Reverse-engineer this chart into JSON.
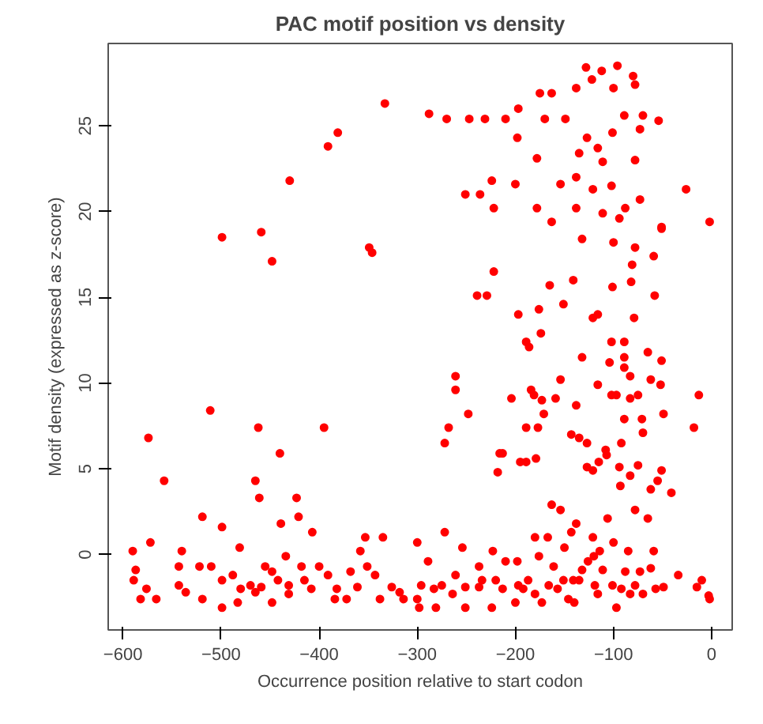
{
  "chart_data": {
    "type": "scatter",
    "title": "PAC motif position vs density",
    "xlabel": "Occurrence position relative to start codon",
    "ylabel": "Motif density (expressed as z-score)",
    "xlim": [
      -615,
      21
    ],
    "ylim": [
      -4.4,
      29.8
    ],
    "xticks": [
      -600,
      -500,
      -400,
      -300,
      -200,
      -100,
      0
    ],
    "yticks": [
      0,
      5,
      10,
      15,
      20,
      25
    ],
    "grid": false,
    "marker": "circle",
    "series": [
      {
        "color": "#ff0000",
        "x": [
          -128,
          -96,
          -112,
          -80,
          -122,
          -175,
          -163,
          -138,
          -100,
          -78,
          -333,
          -288,
          -270,
          -247,
          -231,
          -210,
          -197,
          -170,
          -149,
          -89,
          -70,
          -54,
          -73,
          -101,
          -198,
          -127,
          -116,
          -135,
          -178,
          -111,
          -78,
          -381,
          -391,
          -430,
          -224,
          -200,
          -154,
          -138,
          -121,
          -102,
          -26,
          -251,
          -236,
          -73,
          -222,
          -178,
          -138,
          -111,
          -88,
          -163,
          -2,
          -51,
          -94,
          -499,
          -459,
          -448,
          -349,
          -346,
          -132,
          -100,
          -51,
          -78,
          -59,
          -81,
          -222,
          -165,
          -141,
          -101,
          -82,
          -239,
          -229,
          -58,
          -197,
          -176,
          -151,
          -116,
          -121,
          -79,
          -174,
          -189,
          -186,
          -102,
          -89,
          -132,
          -65,
          -89,
          -51,
          -104,
          -89,
          -261,
          -83,
          -261,
          -154,
          -116,
          -62,
          -52,
          -184,
          -181,
          -204,
          -159,
          -173,
          -102,
          -97,
          -83,
          -75,
          -13,
          -138,
          -171,
          -248,
          -49,
          -511,
          -89,
          -71,
          -574,
          -462,
          -395,
          -268,
          -143,
          -135,
          -127,
          -18,
          -70,
          -272,
          -189,
          -177,
          -179,
          -216,
          -213,
          -218,
          -195,
          -189,
          -108,
          -107,
          -127,
          -121,
          -115,
          -94,
          -93,
          -92,
          -75,
          -83,
          -51,
          -55,
          -62,
          -41,
          -78,
          -65,
          -558,
          -465,
          -461,
          -440,
          -423,
          -421,
          -439,
          -519,
          -499,
          -407,
          -106,
          -163,
          -154,
          -138,
          -143,
          -272,
          -353,
          -335,
          -180,
          -167,
          -121,
          -572,
          -300,
          -100,
          -481,
          -254,
          -150,
          -590,
          -540,
          -358,
          -223,
          -114,
          -85,
          -59,
          -434,
          -176,
          -120,
          -587,
          -589,
          -582,
          -576,
          -566,
          -543,
          -543,
          -536,
          -522,
          -519,
          -510,
          -499,
          -499,
          -488,
          -483,
          -480,
          -470,
          -465,
          -459,
          -455,
          -448,
          -448,
          -442,
          -431,
          -431,
          -418,
          -415,
          -408,
          -400,
          -391,
          -382,
          -384,
          -372,
          -368,
          -361,
          -351,
          -343,
          -338,
          -326,
          -318,
          -314,
          -300,
          -298,
          -296,
          -289,
          -283,
          -281,
          -275,
          -264,
          -261,
          -251,
          -251,
          -237,
          -237,
          -234,
          -224,
          -220,
          -213,
          -210,
          -200,
          -198,
          -197,
          -192,
          -187,
          -180,
          -173,
          -166,
          -161,
          -157,
          -151,
          -146,
          -141,
          -140,
          -135,
          -132,
          -126,
          -119,
          -116,
          -111,
          -101,
          -97,
          -92,
          -88,
          -83,
          -78,
          -73,
          -70,
          -62,
          -57,
          -49,
          -34,
          -15,
          -10,
          -3,
          -2
        ],
        "values": [
          28.4,
          28.5,
          28.2,
          27.9,
          27.7,
          26.9,
          26.9,
          27.2,
          27.2,
          27.4,
          26.3,
          25.7,
          25.4,
          25.4,
          25.4,
          25.4,
          26.0,
          25.4,
          25.4,
          25.6,
          25.6,
          25.3,
          24.8,
          24.6,
          24.3,
          24.3,
          23.7,
          23.4,
          23.1,
          22.9,
          23.0,
          24.6,
          23.8,
          21.8,
          21.8,
          21.6,
          21.6,
          22.0,
          21.3,
          21.5,
          21.3,
          21.0,
          21.0,
          20.7,
          20.2,
          20.2,
          20.2,
          19.9,
          20.2,
          19.4,
          19.4,
          19.1,
          19.6,
          18.5,
          18.8,
          17.1,
          17.9,
          17.6,
          18.4,
          18.2,
          19.0,
          17.9,
          17.4,
          16.9,
          16.5,
          15.7,
          16.0,
          15.6,
          15.9,
          15.1,
          15.1,
          15.1,
          14.0,
          14.3,
          14.6,
          14.0,
          13.8,
          13.8,
          12.9,
          12.4,
          12.1,
          12.4,
          12.4,
          11.5,
          11.8,
          11.5,
          11.3,
          11.2,
          10.9,
          10.4,
          10.4,
          9.6,
          10.2,
          9.9,
          10.2,
          9.9,
          9.6,
          9.3,
          9.1,
          9.1,
          9.0,
          9.3,
          9.3,
          9.1,
          9.3,
          9.3,
          8.7,
          8.2,
          8.2,
          8.2,
          8.4,
          7.9,
          7.9,
          6.8,
          7.4,
          7.4,
          7.4,
          7.0,
          6.8,
          6.5,
          7.4,
          7.1,
          6.5,
          7.4,
          7.4,
          5.6,
          5.9,
          5.9,
          4.8,
          5.4,
          5.4,
          6.1,
          5.8,
          5.1,
          4.9,
          5.4,
          5.1,
          4.0,
          6.5,
          5.2,
          4.6,
          4.9,
          4.3,
          3.8,
          3.6,
          2.6,
          2.1,
          4.3,
          4.3,
          3.3,
          5.9,
          3.3,
          2.2,
          1.8,
          2.2,
          1.6,
          1.3,
          2.1,
          2.9,
          2.6,
          1.8,
          1.3,
          1.3,
          1.0,
          1.0,
          1.0,
          1.0,
          1.0,
          0.7,
          0.7,
          0.7,
          0.4,
          0.4,
          0.4,
          0.2,
          0.2,
          0.2,
          0.2,
          0.2,
          0.2,
          0.2,
          -0.1,
          -0.1,
          -0.1,
          -0.9,
          -1.5,
          -2.6,
          -2.0,
          -2.6,
          -0.7,
          -1.8,
          -2.2,
          -0.7,
          -2.6,
          -0.7,
          -3.1,
          -1.5,
          -1.2,
          -2.8,
          -2.0,
          -1.8,
          -2.2,
          -1.9,
          -0.7,
          -2.8,
          -1.0,
          -1.5,
          -1.8,
          -2.3,
          -0.7,
          -1.5,
          -2.0,
          -0.7,
          -1.2,
          -2.0,
          -2.6,
          -2.6,
          -1.0,
          -1.9,
          -0.7,
          -1.2,
          -2.6,
          -1.9,
          -2.2,
          -2.6,
          -2.6,
          -3.1,
          -1.8,
          -0.4,
          -2.0,
          -3.1,
          -1.8,
          -2.3,
          -1.2,
          -1.9,
          -3.1,
          -0.7,
          -1.9,
          -1.5,
          -3.1,
          -1.5,
          -2.0,
          -0.4,
          -2.8,
          -0.4,
          -1.8,
          -2.0,
          -1.5,
          -2.3,
          -2.8,
          -1.8,
          -0.7,
          -2.0,
          -1.5,
          -2.6,
          -1.5,
          -2.8,
          -1.5,
          -0.9,
          -0.4,
          -1.8,
          -2.3,
          -0.9,
          -1.8,
          -3.1,
          -2.0,
          -1.0,
          -2.3,
          -1.8,
          -1.0,
          -2.3,
          -0.8,
          -2.0,
          -1.9,
          -1.2,
          -1.9,
          -1.5,
          -2.4,
          -2.6
        ]
      }
    ]
  }
}
